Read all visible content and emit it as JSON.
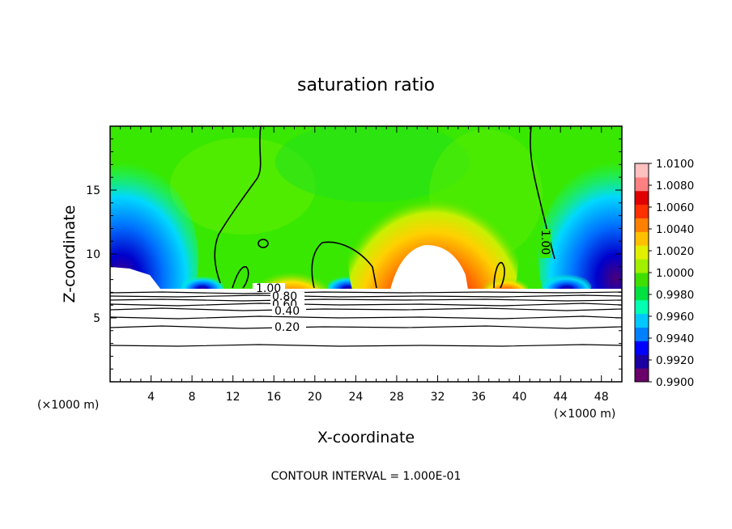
{
  "chart_data": {
    "type": "heatmap",
    "title": "saturation ratio",
    "xlabel": "X-coordinate",
    "ylabel": "Z-coordinate",
    "x_unit": "(×1000 m)",
    "xlim": [
      0,
      50
    ],
    "ylim": [
      0,
      20
    ],
    "x_ticks": [
      4,
      8,
      12,
      16,
      20,
      24,
      28,
      32,
      36,
      40,
      44,
      48
    ],
    "y_ticks": [
      5,
      10,
      15
    ],
    "colorbar": {
      "min": 0.99,
      "max": 1.01,
      "labels": [
        "1.0100",
        "1.0080",
        "1.0060",
        "1.0040",
        "1.0020",
        "1.0000",
        "0.9980",
        "0.9960",
        "0.9940",
        "0.9920",
        "0.9900"
      ],
      "colors": [
        "#6a006a",
        "#1a00a0",
        "#0000ff",
        "#0080ff",
        "#00c8ff",
        "#00ffb0",
        "#00e040",
        "#3fe000",
        "#a0f000",
        "#e0f000",
        "#ffc000",
        "#ff8000",
        "#ff3000",
        "#e00000",
        "#ff8080",
        "#ffc0c0"
      ]
    },
    "contour_labels": [
      "1.00",
      "0.80",
      "0.60",
      "0.40",
      "0.20",
      "1.00"
    ],
    "contour_interval_text": "CONTOUR INTERVAL = 1.000E-01"
  }
}
